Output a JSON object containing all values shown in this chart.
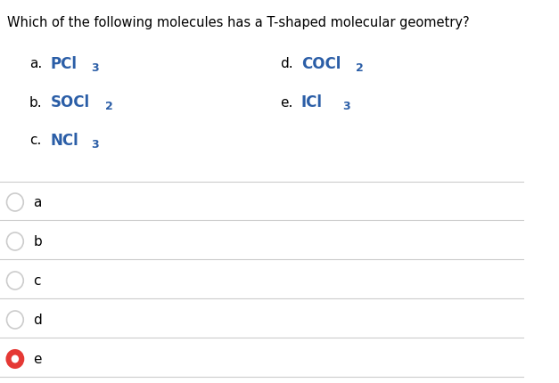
{
  "question": "Which of the following molecules has a T-shaped molecular geometry?",
  "options": [
    {
      "label": "a.",
      "parts": [
        {
          "text": "PCl",
          "subscript": "3"
        }
      ],
      "col": 0
    },
    {
      "label": "b.",
      "parts": [
        {
          "text": "SOCl",
          "subscript": "2"
        }
      ],
      "col": 0
    },
    {
      "label": "c.",
      "parts": [
        {
          "text": "NCl",
          "subscript": "3"
        }
      ],
      "col": 0
    },
    {
      "label": "d.",
      "parts": [
        {
          "text": "COCl",
          "subscript": "2"
        }
      ],
      "col": 1
    },
    {
      "label": "e.",
      "parts": [
        {
          "text": "ICl",
          "subscript": "3"
        }
      ],
      "col": 1
    }
  ],
  "answer": "e",
  "radio_options": [
    "a",
    "b",
    "c",
    "d",
    "e"
  ],
  "bg_color": "#ffffff",
  "text_color": "#000000",
  "option_color": "#2b5ea7",
  "question_color": "#000000",
  "separator_color": "#cccccc",
  "radio_color": "#cccccc",
  "selected_fill": "#e53935",
  "selected_border": "#e53935"
}
